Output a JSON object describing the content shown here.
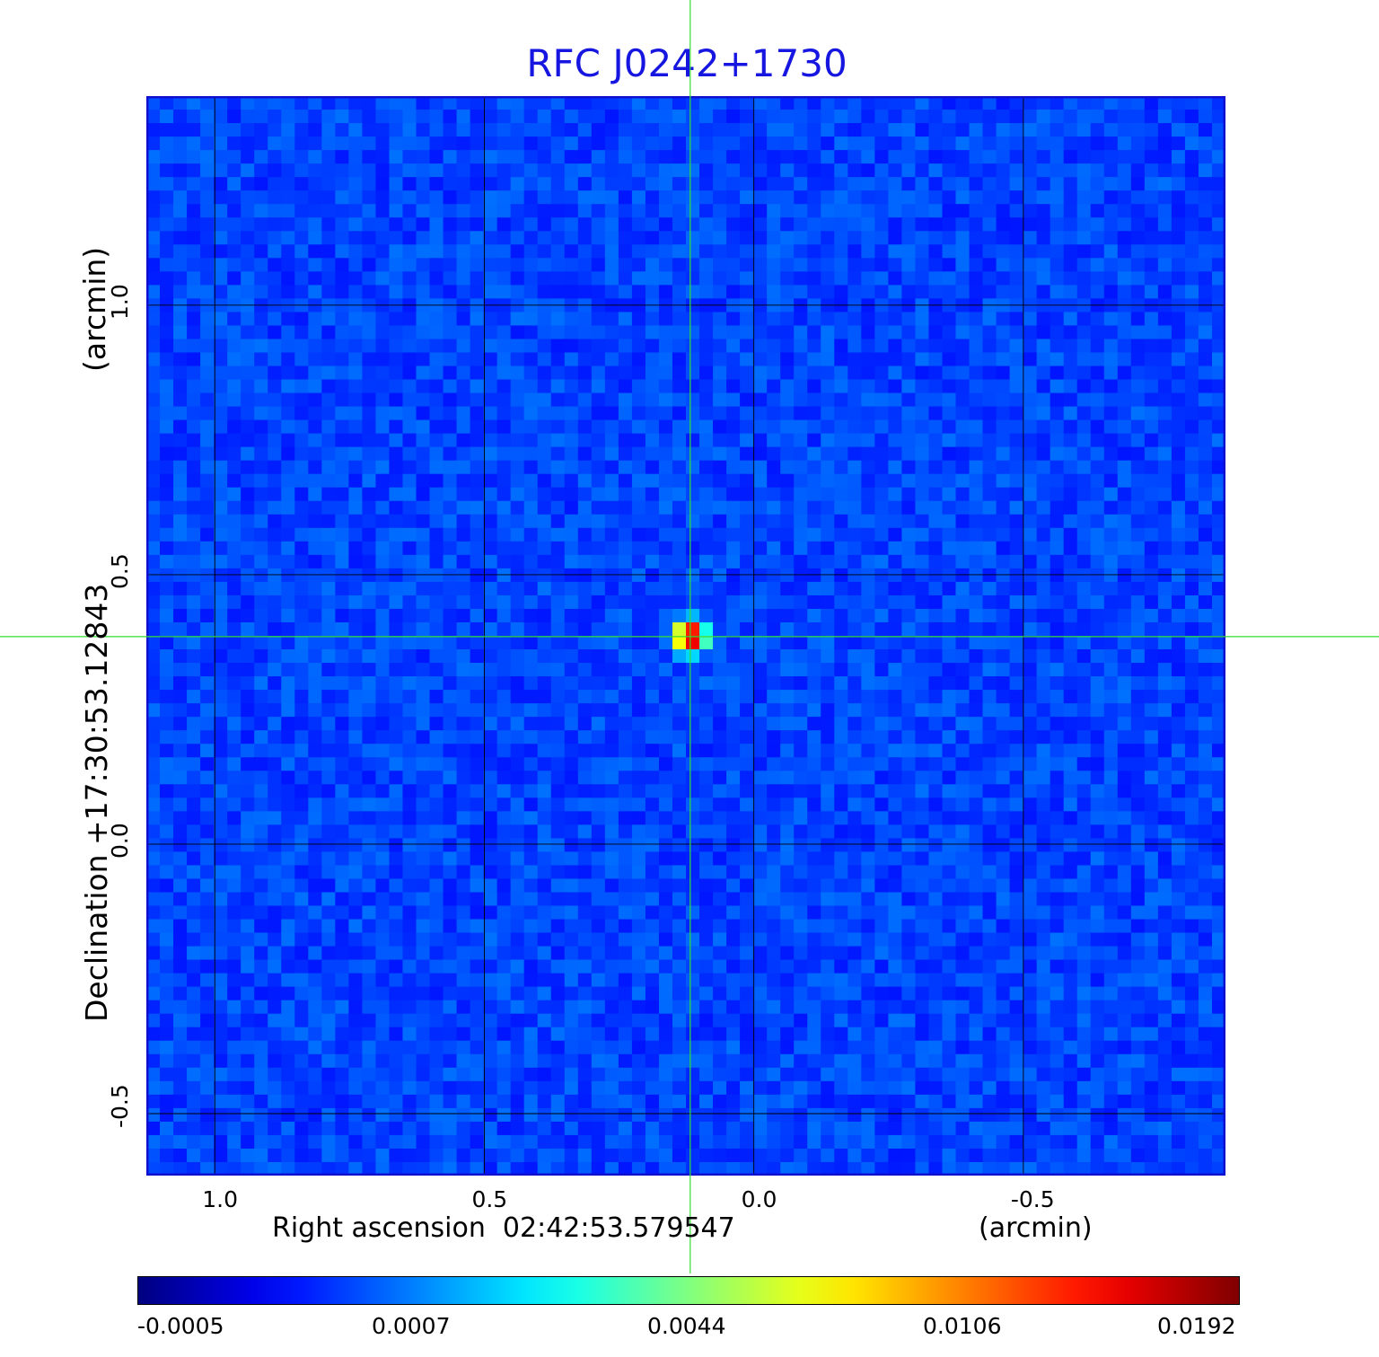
{
  "chart_data": {
    "type": "heatmap",
    "title": "RFC J0242+1730",
    "xlabel": "Right ascension  02:42:53.579547",
    "xunit": "(arcmin)",
    "ylabel": "Declination  +17:30:53.12843",
    "yunit": "(arcmin)",
    "xlim": [
      1.127,
      -0.875
    ],
    "ylim": [
      -0.615,
      1.388
    ],
    "xticks": [
      1.0,
      0.5,
      0.0,
      -0.5
    ],
    "xtick_labels": [
      "1.0",
      "0.5",
      "0.0",
      "-0.5"
    ],
    "yticks": [
      -0.5,
      0.0,
      0.5,
      1.0
    ],
    "ytick_labels": [
      "-0.5",
      "0.0",
      "0.5",
      "1.0"
    ],
    "grid": true,
    "crosshair": {
      "x": 0.118,
      "y": 0.385
    },
    "source_peak": {
      "x": 0.118,
      "y": 0.385,
      "value": 0.0192
    },
    "colormap": "jet",
    "colorbar": {
      "tick_labels": [
        "-0.0005",
        "0.0007",
        "0.0044",
        "0.0106",
        "0.0192"
      ],
      "tick_fractions": [
        0.0,
        0.25,
        0.5,
        0.75,
        1.0
      ]
    }
  },
  "colors": {
    "title": "#1616e0",
    "crosshair": "#33dd33",
    "grid": "#000000",
    "frame": "#1010d0"
  }
}
